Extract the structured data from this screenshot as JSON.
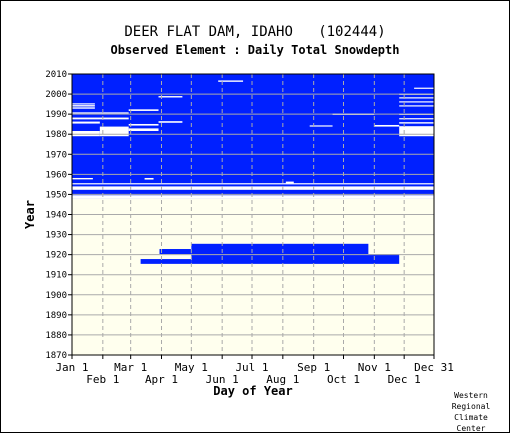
{
  "chart_data": {
    "type": "heatmap",
    "title": "DEER FLAT DAM, IDAHO   (102444)",
    "subtitle": "Observed Element : Daily Total Snowdepth",
    "xlabel": "Day of Year",
    "ylabel": "Year",
    "xlim": [
      1,
      365
    ],
    "ylim": [
      1870,
      2010
    ],
    "x_ticks_top": [
      {
        "label": "Jan 1",
        "day": 1
      },
      {
        "label": "Mar 1",
        "day": 60
      },
      {
        "label": "May 1",
        "day": 121
      },
      {
        "label": "Jul 1",
        "day": 182
      },
      {
        "label": "Sep 1",
        "day": 244
      },
      {
        "label": "Nov 1",
        "day": 305
      },
      {
        "label": "Dec 31",
        "day": 365
      }
    ],
    "x_ticks_bottom": [
      {
        "label": "Feb 1",
        "day": 32
      },
      {
        "label": "Apr 1",
        "day": 91
      },
      {
        "label": "Jun 1",
        "day": 152
      },
      {
        "label": "Aug 1",
        "day": 213
      },
      {
        "label": "Oct 1",
        "day": 274
      },
      {
        "label": "Dec 1",
        "day": 335
      }
    ],
    "y_ticks": [
      1870,
      1880,
      1890,
      1900,
      1910,
      1920,
      1930,
      1940,
      1950,
      1960,
      1970,
      1980,
      1990,
      2000,
      2010
    ],
    "grid": true,
    "legend": "none",
    "colors": {
      "observed": "#0020ff",
      "missing": "#ffffff",
      "grid": "#aaaaaa",
      "plot_bg": "#ffffee"
    },
    "observed_blocks": [
      {
        "day_start": 1,
        "day_end": 365,
        "year_start": 1948,
        "year_end": 2010
      },
      {
        "day_start": 121,
        "day_end": 299,
        "year_start": 1920.3,
        "year_end": 1925.4
      },
      {
        "day_start": 89,
        "day_end": 121,
        "year_start": 1920.3,
        "year_end": 1922.8
      },
      {
        "day_start": 121,
        "day_end": 330,
        "year_start": 1915.4,
        "year_end": 1920.3
      },
      {
        "day_start": 70,
        "day_end": 121,
        "year_start": 1915.4,
        "year_end": 1917.8
      }
    ],
    "missing_gaps": [
      {
        "day_start": 1,
        "day_end": 365,
        "year_start": 1952.3,
        "year_end": 1954
      },
      {
        "day_start": 1,
        "day_end": 365,
        "year_start": 1955,
        "year_end": 1955.6
      },
      {
        "day_start": 1,
        "day_end": 22,
        "year_start": 1957.5,
        "year_end": 1958.2
      },
      {
        "day_start": 74,
        "day_end": 83,
        "year_start": 1957.4,
        "year_end": 1958.2
      },
      {
        "day_start": 216,
        "day_end": 224,
        "year_start": 1955.5,
        "year_end": 1956.4
      },
      {
        "day_start": 1,
        "day_end": 29,
        "year_start": 1979,
        "year_end": 1981.6
      },
      {
        "day_start": 29,
        "day_end": 58,
        "year_start": 1979,
        "year_end": 1983.8
      },
      {
        "day_start": 58,
        "day_end": 88,
        "year_start": 1981.6,
        "year_end": 1982.9
      },
      {
        "day_start": 58,
        "day_end": 88,
        "year_start": 1984.3,
        "year_end": 1985.1
      },
      {
        "day_start": 1,
        "day_end": 29,
        "year_start": 1985.3,
        "year_end": 1986.3
      },
      {
        "day_start": 1,
        "day_end": 58,
        "year_start": 1987.4,
        "year_end": 1988.3
      },
      {
        "day_start": 1,
        "day_end": 58,
        "year_start": 1990.3,
        "year_end": 1990.9
      },
      {
        "day_start": 58,
        "day_end": 88,
        "year_start": 1991.6,
        "year_end": 1992.4
      },
      {
        "day_start": 1,
        "day_end": 24,
        "year_start": 1992.7,
        "year_end": 1993.4
      },
      {
        "day_start": 1,
        "day_end": 24,
        "year_start": 1993.8,
        "year_end": 1994.5
      },
      {
        "day_start": 1,
        "day_end": 24,
        "year_start": 1994.8,
        "year_end": 1995.4
      },
      {
        "day_start": 88,
        "day_end": 112,
        "year_start": 1985.7,
        "year_end": 1986.5
      },
      {
        "day_start": 88,
        "day_end": 112,
        "year_start": 1998.3,
        "year_end": 1999
      },
      {
        "day_start": 148,
        "day_end": 173,
        "year_start": 2006.1,
        "year_end": 2006.8
      },
      {
        "day_start": 240,
        "day_end": 263,
        "year_start": 1983.8,
        "year_end": 1984.4
      },
      {
        "day_start": 263,
        "day_end": 305,
        "year_start": 1989.6,
        "year_end": 1990.3
      },
      {
        "day_start": 305,
        "day_end": 330,
        "year_start": 1983.8,
        "year_end": 1984.6
      },
      {
        "day_start": 330,
        "day_end": 365,
        "year_start": 1979,
        "year_end": 1984
      },
      {
        "day_start": 330,
        "day_end": 365,
        "year_start": 1985.3,
        "year_end": 1986
      },
      {
        "day_start": 330,
        "day_end": 365,
        "year_start": 1987.4,
        "year_end": 1988
      },
      {
        "day_start": 330,
        "day_end": 365,
        "year_start": 1989.6,
        "year_end": 1990.2
      },
      {
        "day_start": 330,
        "day_end": 365,
        "year_start": 1993.8,
        "year_end": 1994.4
      },
      {
        "day_start": 330,
        "day_end": 365,
        "year_start": 1995.8,
        "year_end": 1996.4
      },
      {
        "day_start": 330,
        "day_end": 365,
        "year_start": 1997.8,
        "year_end": 1998.4
      },
      {
        "day_start": 330,
        "day_end": 365,
        "year_start": 1999.6,
        "year_end": 2000.2
      },
      {
        "day_start": 345,
        "day_end": 365,
        "year_start": 2002.6,
        "year_end": 2003.2
      },
      {
        "day_start": 1,
        "day_end": 365,
        "year_start": 1948,
        "year_end": 1949.6
      }
    ]
  },
  "credit": [
    "Western",
    "Regional",
    "Climate",
    "Center"
  ]
}
